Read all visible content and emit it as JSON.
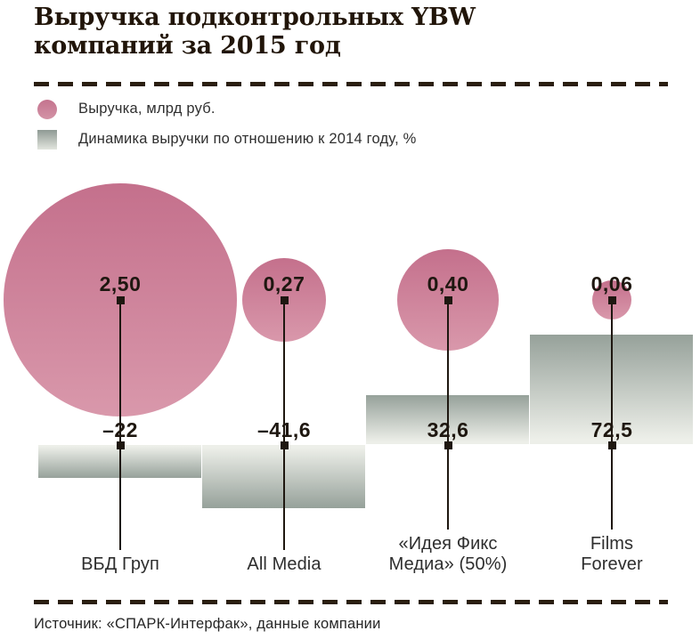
{
  "header": {
    "line1": "Выручка подконтрольных YBW",
    "line2": "компаний за 2015 год"
  },
  "legend": {
    "items": [
      {
        "swatch": "revenue-bubble",
        "label": "Выручка, млрд руб."
      },
      {
        "swatch": "dynamics-bar",
        "label": "Динамика выручки по отношению к 2014 году, %"
      }
    ]
  },
  "footer": {
    "source": "Источник: «СПАРК-Интерфак», данные компании"
  },
  "colors": {
    "bubble_top": "#c4708c",
    "bubble_bottom": "#d998ab",
    "bar_dark": "#96a19a",
    "bar_light": "#edefe9",
    "ink": "#1e1710",
    "dash": "#2a1e10"
  },
  "chart_data": {
    "type": "bubble+bar combo",
    "title": "Выручка подконтрольных YBW компаний за 2015 год",
    "categories": [
      "ВБД Груп",
      "All Media",
      "«Идея Фикс Медиа» (50%)",
      "Films Forever"
    ],
    "category_label_lines": [
      [
        "ВБД Груп"
      ],
      [
        "All Media"
      ],
      [
        "«Идея Фикс",
        "Медиа» (50%)"
      ],
      [
        "Films",
        "Forever"
      ]
    ],
    "series": [
      {
        "name": "Выручка, млрд руб.",
        "type": "bubble",
        "values": [
          2.5,
          0.27,
          0.4,
          0.06
        ],
        "labels": [
          "2,50",
          "0,27",
          "0,40",
          "0,06"
        ]
      },
      {
        "name": "Динамика выручки по отношению к 2014 году, %",
        "type": "bar",
        "values": [
          -22,
          -41.6,
          32.6,
          72.5
        ],
        "labels": [
          "–22",
          "–41,6",
          "32,6",
          "72,5"
        ]
      }
    ],
    "legend_position": "top-left",
    "grid": false,
    "source": "Источник: «СПАРК-Интерфак», данные компании"
  }
}
